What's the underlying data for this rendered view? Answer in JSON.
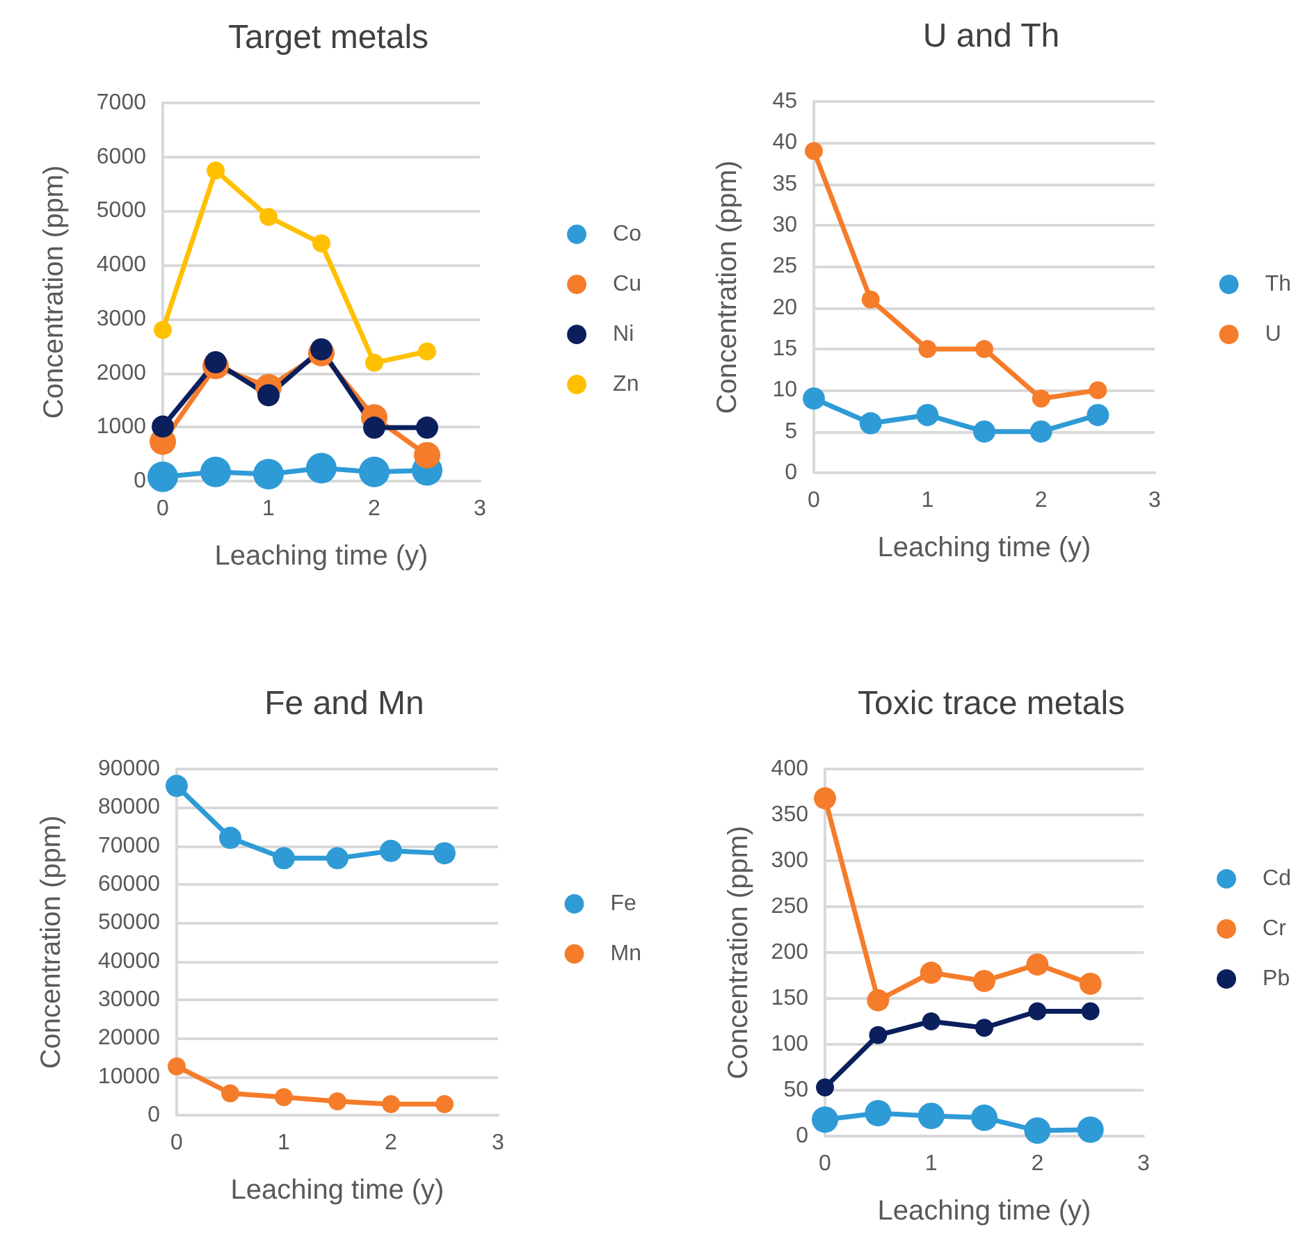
{
  "chart_data": [
    {
      "type": "line",
      "title": "Target metals",
      "xlabel": "Leaching time (y)",
      "ylabel": "Concentration (ppm)",
      "x": [
        0,
        0.5,
        1,
        1.5,
        2,
        2.5
      ],
      "xlim": [
        0,
        3
      ],
      "xticks": [
        0,
        1,
        2,
        3
      ],
      "ylim": [
        0,
        7000
      ],
      "yticks": [
        0,
        1000,
        2000,
        3000,
        4000,
        5000,
        6000,
        7000
      ],
      "grid": "y",
      "legend": "right",
      "marker": "circle",
      "line_style": "solid",
      "series": [
        {
          "name": "Co",
          "color": "#2e9bd6",
          "values": [
            80,
            170,
            130,
            240,
            170,
            200
          ]
        },
        {
          "name": "Cu",
          "color": "#f57c2a",
          "values": [
            730,
            2130,
            1740,
            2370,
            1180,
            480
          ]
        },
        {
          "name": "Ni",
          "color": "#0a1f5c",
          "values": [
            1010,
            2200,
            1590,
            2440,
            990,
            990
          ]
        },
        {
          "name": "Zn",
          "color": "#ffc000",
          "values": [
            2800,
            5750,
            4890,
            4400,
            2190,
            2400
          ]
        }
      ]
    },
    {
      "type": "line",
      "title": "U and Th",
      "xlabel": "Leaching time (y)",
      "ylabel": "Concentration (ppm)",
      "x": [
        0,
        0.5,
        1,
        1.5,
        2,
        2.5
      ],
      "xlim": [
        0,
        3
      ],
      "xticks": [
        0,
        1,
        2,
        3
      ],
      "ylim": [
        0,
        45
      ],
      "yticks": [
        0,
        5,
        10,
        15,
        20,
        25,
        30,
        35,
        40,
        45
      ],
      "grid": "y",
      "legend": "right",
      "marker": "circle",
      "line_style": "solid",
      "series": [
        {
          "name": "Th",
          "color": "#2e9bd6",
          "values": [
            9,
            6,
            7,
            5,
            5,
            7
          ]
        },
        {
          "name": "U",
          "color": "#f57c2a",
          "values": [
            39,
            21,
            15,
            15,
            9,
            10
          ]
        }
      ]
    },
    {
      "type": "line",
      "title": "Fe and Mn",
      "xlabel": "Leaching time (y)",
      "ylabel": "Concentration (ppm)",
      "x": [
        0,
        0.5,
        1,
        1.5,
        2,
        2.5
      ],
      "xlim": [
        0,
        3
      ],
      "xticks": [
        0,
        1,
        2,
        3
      ],
      "ylim": [
        0,
        90000
      ],
      "yticks": [
        0,
        10000,
        20000,
        30000,
        40000,
        50000,
        60000,
        70000,
        80000,
        90000
      ],
      "grid": "y",
      "legend": "right",
      "marker": "circle",
      "line_style": "solid",
      "series": [
        {
          "name": "Fe",
          "color": "#2e9bd6",
          "values": [
            85600,
            72100,
            66800,
            66800,
            68700,
            68100
          ]
        },
        {
          "name": "Mn",
          "color": "#f57c2a",
          "values": [
            12700,
            5700,
            4700,
            3600,
            2900,
            2900
          ]
        }
      ]
    },
    {
      "type": "line",
      "title": "Toxic trace metals",
      "xlabel": "Leaching time (y)",
      "ylabel": "Concentration (ppm)",
      "x": [
        0,
        0.5,
        1,
        1.5,
        2,
        2.5
      ],
      "xlim": [
        0,
        3
      ],
      "xticks": [
        0,
        1,
        2,
        3
      ],
      "ylim": [
        0,
        400
      ],
      "yticks": [
        0,
        50,
        100,
        150,
        200,
        250,
        300,
        350,
        400
      ],
      "grid": "y",
      "legend": "right",
      "marker": "circle",
      "line_style": "solid",
      "series": [
        {
          "name": "Cd",
          "color": "#2e9bd6",
          "values": [
            18,
            25,
            22,
            20,
            6,
            7
          ]
        },
        {
          "name": "Cr",
          "color": "#f57c2a",
          "values": [
            368,
            148,
            178,
            169,
            187,
            166
          ]
        },
        {
          "name": "Pb",
          "color": "#0a1f5c",
          "values": [
            53,
            110,
            125,
            118,
            136,
            136
          ]
        }
      ]
    }
  ]
}
